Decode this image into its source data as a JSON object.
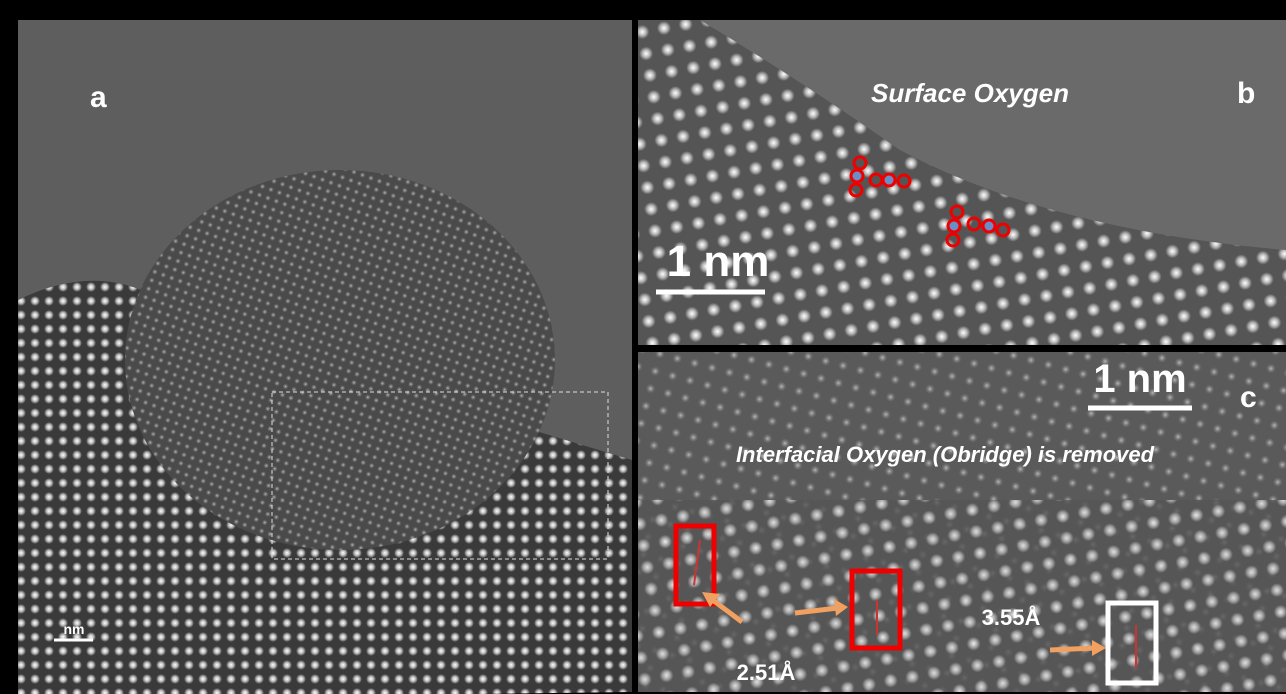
{
  "panels": {
    "a": {
      "label": "a",
      "scale_bar": "nm"
    },
    "b": {
      "label": "b",
      "title": "Surface Oxygen",
      "scale_bar": "1 nm"
    },
    "c": {
      "label": "c",
      "caption": "Interfacial Oxygen (Obridge) is removed",
      "scale_bar": "1 nm",
      "distances": [
        "2.51Å",
        "3.55Å"
      ]
    }
  }
}
